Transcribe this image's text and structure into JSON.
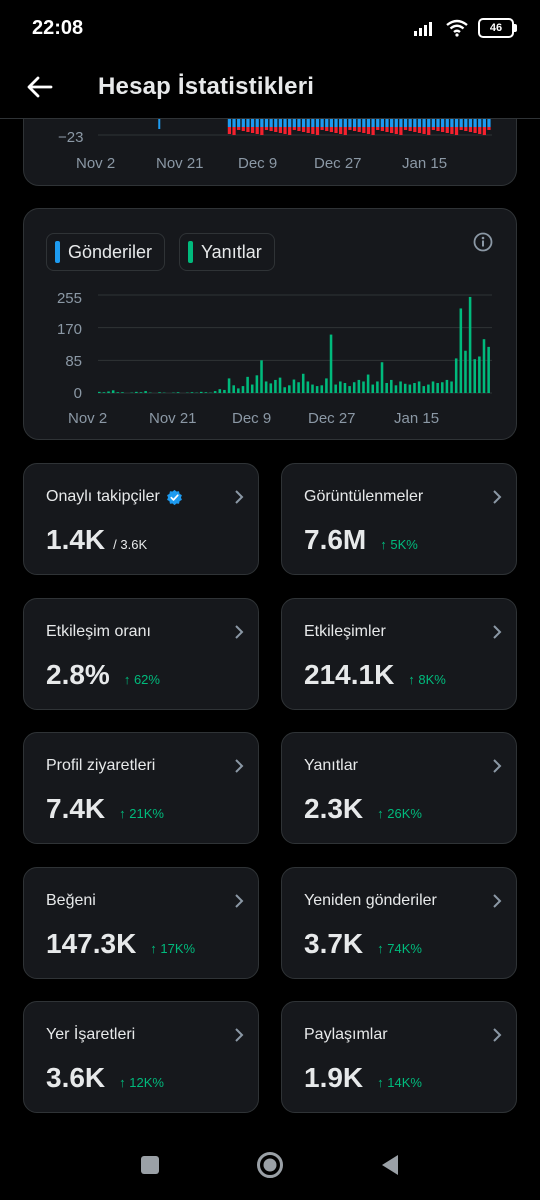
{
  "status": {
    "time": "22:08",
    "battery": "46"
  },
  "header": {
    "title": "Hesap İstatistikleri"
  },
  "chart_top": {
    "y_label": "−23",
    "x_labels": [
      "Nov 2",
      "Nov 21",
      "Dec 9",
      "Dec 27",
      "Jan 15"
    ]
  },
  "chart_data": {
    "type": "bar",
    "series": [
      {
        "name": "Gönderiler",
        "values": [
          0,
          0,
          0,
          2,
          1,
          0,
          0,
          0,
          0,
          0,
          1,
          0,
          0,
          0,
          0,
          0,
          0,
          0,
          0,
          0,
          0,
          0,
          0,
          0,
          0,
          0,
          0,
          0,
          0,
          0,
          0,
          0,
          0,
          0,
          0,
          0,
          0,
          0,
          0,
          0,
          0,
          0,
          0,
          0,
          0,
          0,
          0,
          0,
          0,
          0,
          0,
          0,
          0,
          0,
          0,
          0,
          0,
          0,
          0,
          0,
          0,
          0,
          0,
          0,
          0,
          0,
          0,
          0,
          0,
          0,
          0,
          0,
          0,
          0,
          0,
          0,
          0,
          0,
          0,
          0,
          0,
          0,
          0,
          0,
          0
        ]
      },
      {
        "name": "Yanıtlar",
        "values": [
          3,
          2,
          4,
          5,
          1,
          2,
          0,
          1,
          3,
          2,
          4,
          1,
          0,
          2,
          1,
          0,
          1,
          2,
          0,
          1,
          2,
          1,
          3,
          2,
          1,
          5,
          10,
          8,
          38,
          20,
          12,
          18,
          42,
          22,
          46,
          85,
          30,
          25,
          34,
          40,
          15,
          20,
          35,
          28,
          50,
          30,
          22,
          18,
          20,
          38,
          152,
          22,
          30,
          26,
          18,
          28,
          34,
          30,
          48,
          22,
          30,
          80,
          26,
          34,
          20,
          30,
          24,
          22,
          26,
          30,
          18,
          22,
          30,
          26,
          28,
          34,
          30,
          90,
          220,
          110,
          250,
          88,
          95,
          140,
          120
        ]
      }
    ],
    "y_ticks": [
      "255",
      "170",
      "85",
      "0"
    ],
    "x_labels": [
      "Nov 2",
      "Nov 21",
      "Dec 9",
      "Dec 27",
      "Jan 15"
    ],
    "ylim": [
      0,
      255
    ]
  },
  "legend": {
    "posts": "Gönderiler",
    "replies": "Yanıtlar"
  },
  "colors": {
    "posts": "#1d9bf0",
    "replies": "#00ba7c",
    "negative": "#f4212e"
  },
  "stats": [
    {
      "label": "Onaylı takipçiler",
      "value": "1.4K",
      "sub": "/ 3.6K",
      "change": ""
    },
    {
      "label": "Görüntülenmeler",
      "value": "7.6M",
      "sub": "",
      "change": "↑ 5K%"
    },
    {
      "label": "Etkileşim oranı",
      "value": "2.8%",
      "sub": "",
      "change": "↑ 62%"
    },
    {
      "label": "Etkileşimler",
      "value": "214.1K",
      "sub": "",
      "change": "↑ 8K%"
    },
    {
      "label": "Profil ziyaretleri",
      "value": "7.4K",
      "sub": "",
      "change": "↑ 21K%"
    },
    {
      "label": "Yanıtlar",
      "value": "2.3K",
      "sub": "",
      "change": "↑ 26K%"
    },
    {
      "label": "Beğeni",
      "value": "147.3K",
      "sub": "",
      "change": "↑ 17K%"
    },
    {
      "label": "Yeniden gönderiler",
      "value": "3.7K",
      "sub": "",
      "change": "↑ 74K%"
    },
    {
      "label": "Yer İşaretleri",
      "value": "3.6K",
      "sub": "",
      "change": "↑ 12K%"
    },
    {
      "label": "Paylaşımlar",
      "value": "1.9K",
      "sub": "",
      "change": "↑ 14K%"
    }
  ]
}
